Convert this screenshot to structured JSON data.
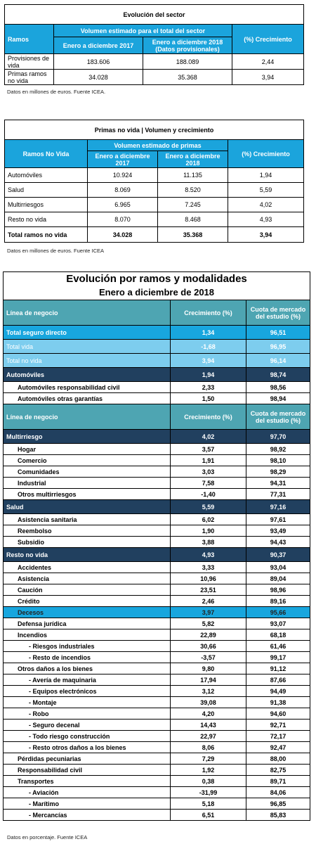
{
  "sector": {
    "title": "Evolución del sector",
    "col_ramos": "Ramos",
    "col_volumen": "Volumen estimado para el total del sector",
    "col_2017": "Enero a diciembre 2017",
    "col_2018": "Enero a diciembre 2018 (Datos provisionales)",
    "col_crec": "(%) Crecimiento",
    "rows": [
      {
        "name": "Provisiones de vida",
        "v2017": "183.606",
        "v2018": "188.089",
        "crec": "2,44"
      },
      {
        "name": "Primas ramos no vida",
        "v2017": "34.028",
        "v2018": "35.368",
        "crec": "3,94"
      }
    ],
    "note": "Datos en millones de euros. Fuente ICEA."
  },
  "no_vida": {
    "title": "Primas no vida | Volumen y crecimiento",
    "col_ramos": "Ramos No Vida",
    "col_volumen": "Volumen estimado de primas",
    "col_2017": "Enero a diciembre 2017",
    "col_2018": "Enero a diciembre 2018",
    "col_crec": "(%) Crecimiento",
    "rows": [
      {
        "name": "Automóviles",
        "v2017": "10.924",
        "v2018": "11.135",
        "crec": "1,94"
      },
      {
        "name": "Salud",
        "v2017": "8.069",
        "v2018": "8.520",
        "crec": "5,59"
      },
      {
        "name": "Multirriesgos",
        "v2017": "6.965",
        "v2018": "7.245",
        "crec": "4,02"
      },
      {
        "name": "Resto no vida",
        "v2017": "8.070",
        "v2018": "8.468",
        "crec": "4,93"
      }
    ],
    "total": {
      "name": "Total ramos no vida",
      "v2017": "34.028",
      "v2018": "35.368",
      "crec": "3,94"
    },
    "note": "Datos en millones de euros. Fuente ICEA"
  },
  "ramos": {
    "title": "Evolución por ramos y modalidades",
    "subtitle": "Enero a diciembre de 2018",
    "col_linea": "Línea de negocio",
    "col_crec": "Crecimiento (%)",
    "col_cuota": "Cuota de mercado del estudio (%)",
    "rows": [
      {
        "type": "hdr"
      },
      {
        "type": "bl1",
        "name": "Total seguro directo",
        "crec": "1,34",
        "cuota": "96,51"
      },
      {
        "type": "bl2",
        "name": "Total vida",
        "crec": "-1,68",
        "cuota": "96,95"
      },
      {
        "type": "bl2",
        "name": "Total no vida",
        "crec": "3,94",
        "cuota": "96,14"
      },
      {
        "type": "dk",
        "name": "Automóviles",
        "crec": "1,94",
        "cuota": "98,74"
      },
      {
        "type": "item",
        "name": "Automóviles responsabilidad civil",
        "crec": "2,33",
        "cuota": "98,56",
        "indent": 1
      },
      {
        "type": "item",
        "name": "Automóviles otras garantías",
        "crec": "1,50",
        "cuota": "98,94",
        "indent": 1
      },
      {
        "type": "hdr"
      },
      {
        "type": "dk",
        "name": "Multirriesgo",
        "crec": "4,02",
        "cuota": "97,70"
      },
      {
        "type": "item",
        "name": "Hogar",
        "crec": "3,57",
        "cuota": "98,92",
        "indent": 1
      },
      {
        "type": "item",
        "name": "Comercio",
        "crec": "1,91",
        "cuota": "98,10",
        "indent": 1
      },
      {
        "type": "item",
        "name": "Comunidades",
        "crec": "3,03",
        "cuota": "98,29",
        "indent": 1
      },
      {
        "type": "item",
        "name": "Industrial",
        "crec": "7,58",
        "cuota": "94,31",
        "indent": 1
      },
      {
        "type": "item",
        "name": "Otros multirriesgos",
        "crec": "-1,40",
        "cuota": "77,31",
        "indent": 1
      },
      {
        "type": "dk",
        "name": "Salud",
        "crec": "5,59",
        "cuota": "97,16"
      },
      {
        "type": "item",
        "name": "Asistencia sanitaria",
        "crec": "6,02",
        "cuota": "97,61",
        "indent": 1
      },
      {
        "type": "item",
        "name": "Reembolso",
        "crec": "1,90",
        "cuota": "93,49",
        "indent": 1
      },
      {
        "type": "item",
        "name": "Subsidio",
        "crec": "3,88",
        "cuota": "94,43",
        "indent": 1
      },
      {
        "type": "dk",
        "name": "Resto no vida",
        "crec": "4,93",
        "cuota": "90,37"
      },
      {
        "type": "item",
        "name": "Accidentes",
        "crec": "3,33",
        "cuota": "93,04",
        "indent": 1
      },
      {
        "type": "item",
        "name": "Asistencia",
        "crec": "10,96",
        "cuota": "89,04",
        "indent": 1
      },
      {
        "type": "item",
        "name": "Caución",
        "crec": "23,51",
        "cuota": "98,96",
        "indent": 1
      },
      {
        "type": "item",
        "name": "Crédito",
        "crec": "2,46",
        "cuota": "89,16",
        "indent": 1
      },
      {
        "type": "hl",
        "name": "Decesos",
        "crec": "3,97",
        "cuota": "95,66",
        "indent": 1
      },
      {
        "type": "item",
        "name": "Defensa jurídica",
        "crec": "5,82",
        "cuota": "93,07",
        "indent": 1
      },
      {
        "type": "item",
        "name": "Incendios",
        "crec": "22,89",
        "cuota": "68,18",
        "indent": 1
      },
      {
        "type": "item",
        "name": "- Riesgos industriales",
        "crec": "30,66",
        "cuota": "61,46",
        "indent": 2
      },
      {
        "type": "item",
        "name": "- Resto de incendios",
        "crec": "-3,57",
        "cuota": "99,17",
        "indent": 2
      },
      {
        "type": "item",
        "name": "Otros daños a los bienes",
        "crec": "9,80",
        "cuota": "91,12",
        "indent": 1
      },
      {
        "type": "item",
        "name": "- Avería de maquinaria",
        "crec": "17,94",
        "cuota": "87,66",
        "indent": 2
      },
      {
        "type": "item",
        "name": "- Equipos electrónicos",
        "crec": "3,12",
        "cuota": "94,49",
        "indent": 2
      },
      {
        "type": "item",
        "name": "- Montaje",
        "crec": "39,08",
        "cuota": "91,38",
        "indent": 2
      },
      {
        "type": "item",
        "name": "- Robo",
        "crec": "4,20",
        "cuota": "94,60",
        "indent": 2
      },
      {
        "type": "item",
        "name": "- Seguro decenal",
        "crec": "14,43",
        "cuota": "92,71",
        "indent": 2
      },
      {
        "type": "item",
        "name": "- Todo riesgo construcción",
        "crec": "22,97",
        "cuota": "72,17",
        "indent": 2
      },
      {
        "type": "item",
        "name": "- Resto otros daños a los bienes",
        "crec": "8,06",
        "cuota": "92,47",
        "indent": 2
      },
      {
        "type": "item",
        "name": "Pérdidas pecuniarias",
        "crec": "7,29",
        "cuota": "88,00",
        "indent": 1
      },
      {
        "type": "item",
        "name": "Responsabilidad civil",
        "crec": "1,92",
        "cuota": "82,75",
        "indent": 1
      },
      {
        "type": "item",
        "name": "Transportes",
        "crec": "0,38",
        "cuota": "89,71",
        "indent": 1
      },
      {
        "type": "item",
        "name": "- Aviación",
        "crec": "-31,99",
        "cuota": "84,06",
        "indent": 2
      },
      {
        "type": "item",
        "name": "- Marítimo",
        "crec": "5,18",
        "cuota": "96,85",
        "indent": 2
      },
      {
        "type": "item",
        "name": "- Mercancías",
        "crec": "6,51",
        "cuota": "85,83",
        "indent": 2
      }
    ],
    "note": "Datos en porcentaje. Fuente ICEA"
  }
}
